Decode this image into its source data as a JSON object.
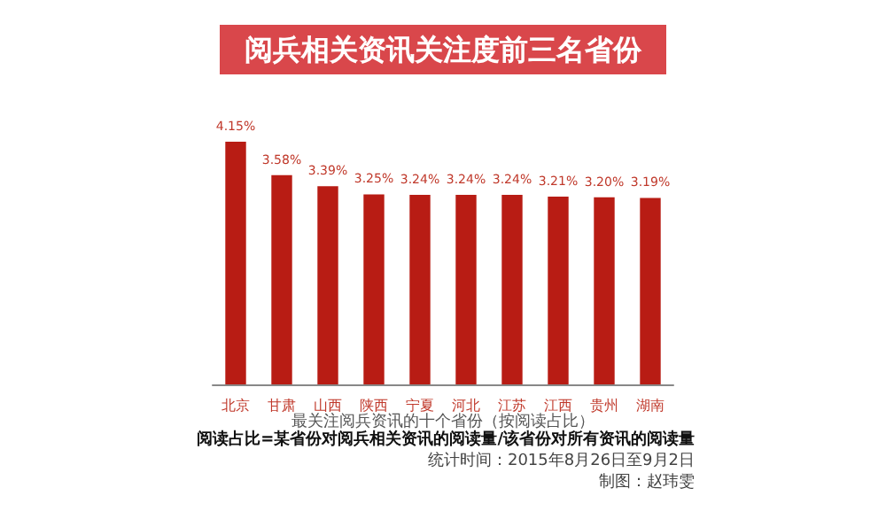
{
  "chart_data": {
    "type": "bar",
    "title": "阅兵相关资讯关注度前三名省份",
    "categories": [
      "北京",
      "甘肃",
      "山西",
      "陕西",
      "宁夏",
      "河北",
      "江苏",
      "江西",
      "贵州",
      "湖南"
    ],
    "values": [
      4.15,
      3.58,
      3.39,
      3.25,
      3.24,
      3.24,
      3.24,
      3.21,
      3.2,
      3.19
    ],
    "value_labels": [
      "4.15%",
      "3.58%",
      "3.39%",
      "3.25%",
      "3.24%",
      "3.24%",
      "3.24%",
      "3.21%",
      "3.20%",
      "3.19%"
    ],
    "color": "#b81c14",
    "xlabel": "最关注阅兵资讯的十个省份（按阅读占比）",
    "annotations": [
      "阅读占比=某省份对阅兵相关资讯的阅读量/该省份对所有资讯的阅读量",
      "统计时间：2015年8月26日至9月2日",
      "制图：赵玮雯"
    ]
  }
}
